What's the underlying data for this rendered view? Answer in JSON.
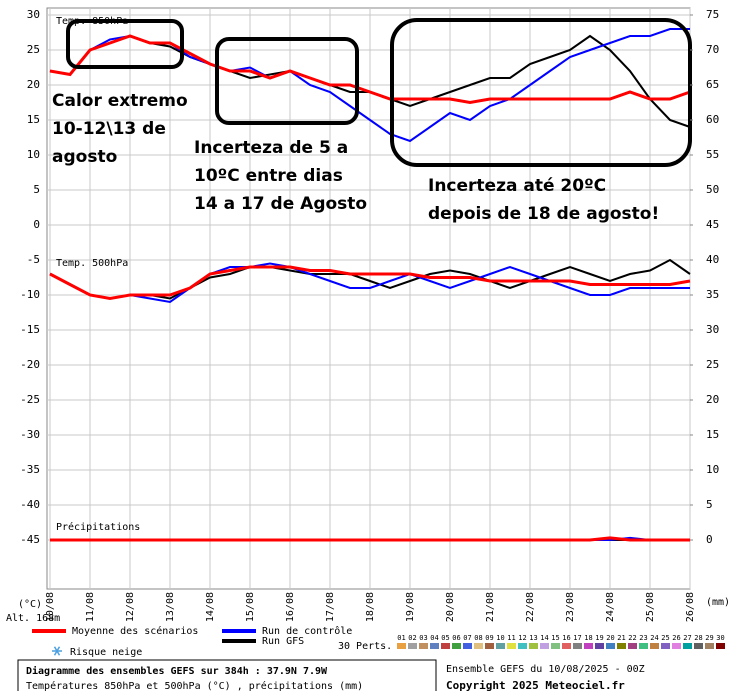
{
  "chart_data": {
    "type": "line",
    "panel_labels": [
      "Temp. 850hPa",
      "Temp. 500hPa",
      "Précipitations"
    ],
    "annotations": [
      "Calor extremo",
      "10-12\\13 de",
      "agosto",
      "Incerteza de 5 a",
      "10ºC entre dias",
      "14 a 17 de Agosto",
      "Incerteza até 20ºC",
      "depois de 18 de agosto!"
    ],
    "ylabel": "(°C)",
    "y2label": "(mm)",
    "altitude": "Alt. 168m",
    "categories": [
      "10/08",
      null,
      "11/08",
      null,
      "12/08",
      null,
      "13/08",
      null,
      "14/08",
      null,
      "15/08",
      null,
      "16/08",
      null,
      "17/08",
      null,
      "18/08",
      null,
      "19/08",
      null,
      "20/08",
      null,
      "21/08",
      null,
      "22/08",
      null,
      "23/08",
      null,
      "24/08",
      null,
      "25/08",
      null,
      "26/08"
    ],
    "ylim": [
      -52,
      31
    ],
    "yticks": [
      -45,
      -40,
      -35,
      -30,
      -25,
      -20,
      -15,
      -10,
      -5,
      0,
      5,
      10,
      15,
      20,
      25,
      30
    ],
    "y2lim": [
      -7,
      76
    ],
    "y2ticks": [
      0,
      5,
      10,
      15,
      20,
      25,
      30,
      35,
      40,
      45,
      50,
      55,
      60,
      65,
      70,
      75
    ],
    "grid": true,
    "series": [
      {
        "name": "Moyenne des scénarios",
        "color": "#ff0000",
        "t850": [
          22,
          21.5,
          25,
          26,
          27,
          26,
          26,
          24.5,
          23,
          22,
          22,
          21,
          22,
          21,
          20,
          20,
          19,
          18,
          18,
          18,
          18,
          17.5,
          18,
          18,
          18,
          18,
          18,
          18,
          18,
          19,
          18,
          18,
          19
        ],
        "t500": [
          -7,
          -8.5,
          -10,
          -10.5,
          -10,
          -10,
          -10,
          -9,
          -7,
          -6.5,
          -6,
          -6,
          -6,
          -6.5,
          -6.5,
          -7,
          -7,
          -7,
          -7,
          -7.5,
          -7.5,
          -7.5,
          -8,
          -8,
          -8,
          -8,
          -8,
          -8.5,
          -8.5,
          -8.5,
          -8.5,
          -8.5,
          -8
        ],
        "precip": [
          0,
          0,
          0,
          0,
          0,
          0,
          0,
          0,
          0,
          0,
          0,
          0,
          0,
          0,
          0,
          0,
          0,
          0,
          0,
          0,
          0,
          0,
          0,
          0,
          0,
          0,
          0,
          0,
          0.3,
          0,
          0,
          0,
          0
        ]
      },
      {
        "name": "Run de contrôle",
        "color": "#0000ff",
        "t850": [
          22,
          21.5,
          25,
          26.5,
          27,
          26,
          26,
          24,
          23,
          22,
          22.5,
          21,
          22,
          20,
          19,
          17,
          15,
          13,
          12,
          14,
          16,
          15,
          17,
          18,
          20,
          22,
          24,
          25,
          26,
          27,
          27,
          28,
          28
        ],
        "t500": [
          -7,
          -8.5,
          -10,
          -10.5,
          -10,
          -10.5,
          -11,
          -9,
          -7,
          -6,
          -6,
          -5.5,
          -6,
          -7,
          -8,
          -9,
          -9,
          -8,
          -7,
          -8,
          -9,
          -8,
          -7,
          -6,
          -7,
          -8,
          -9,
          -10,
          -10,
          -9,
          -9,
          -9,
          -9
        ],
        "precip": [
          0,
          0,
          0,
          0,
          0,
          0,
          0,
          0,
          0,
          0,
          0,
          0,
          0,
          0,
          0,
          0,
          0,
          0,
          0,
          0,
          0,
          0,
          0,
          0,
          0,
          0,
          0,
          0,
          0,
          0.3,
          0,
          0,
          0
        ]
      },
      {
        "name": "Run GFS",
        "color": "#000000",
        "t850": [
          22,
          21.5,
          25,
          26,
          27,
          26,
          25.5,
          24,
          23,
          22,
          21,
          21.5,
          22,
          21,
          20,
          19,
          19,
          18,
          17,
          18,
          19,
          20,
          21,
          21,
          23,
          24,
          25,
          27,
          25,
          22,
          18,
          15,
          14
        ],
        "t500": [
          -7,
          -8.5,
          -10,
          -10.5,
          -10,
          -10,
          -10.5,
          -9,
          -7.5,
          -7,
          -6,
          -6,
          -6.5,
          -7,
          -7,
          -7,
          -8,
          -9,
          -8,
          -7,
          -6.5,
          -7,
          -8,
          -9,
          -8,
          -7,
          -6,
          -7,
          -8,
          -7,
          -6.5,
          -5,
          -7
        ],
        "precip": [
          0,
          0,
          0,
          0,
          0,
          0,
          0,
          0,
          0,
          0,
          0,
          0,
          0,
          0,
          0,
          0,
          0,
          0,
          0,
          0,
          0,
          0,
          0,
          0,
          0,
          0,
          0,
          0,
          0,
          0,
          0,
          0,
          0
        ]
      }
    ],
    "snow_label": "Risque neige",
    "perturbations": {
      "label": "30 Perts.",
      "members": [
        {
          "name": "01",
          "color": "#e8a040"
        },
        {
          "name": "02",
          "color": "#a0a0a0"
        },
        {
          "name": "03",
          "color": "#c09060"
        },
        {
          "name": "04",
          "color": "#6080c0"
        },
        {
          "name": "05",
          "color": "#c04040"
        },
        {
          "name": "06",
          "color": "#40a040"
        },
        {
          "name": "07",
          "color": "#4060e0"
        },
        {
          "name": "08",
          "color": "#e0c080"
        },
        {
          "name": "09",
          "color": "#a06040"
        },
        {
          "name": "10",
          "color": "#60a0a0"
        },
        {
          "name": "11",
          "color": "#e0e040"
        },
        {
          "name": "12",
          "color": "#40c0c0"
        },
        {
          "name": "13",
          "color": "#a0c040"
        },
        {
          "name": "14",
          "color": "#c0a0e0"
        },
        {
          "name": "15",
          "color": "#80c080"
        },
        {
          "name": "16",
          "color": "#e06060"
        },
        {
          "name": "17",
          "color": "#808080"
        },
        {
          "name": "18",
          "color": "#c040c0"
        },
        {
          "name": "19",
          "color": "#6040a0"
        },
        {
          "name": "20",
          "color": "#4080c0"
        },
        {
          "name": "21",
          "color": "#808000"
        },
        {
          "name": "22",
          "color": "#a04080"
        },
        {
          "name": "23",
          "color": "#40c080"
        },
        {
          "name": "24",
          "color": "#c08040"
        },
        {
          "name": "25",
          "color": "#8060c0"
        },
        {
          "name": "26",
          "color": "#e080e0"
        },
        {
          "name": "27",
          "color": "#00a0a0"
        },
        {
          "name": "28",
          "color": "#606060"
        },
        {
          "name": "29",
          "color": "#a08060"
        },
        {
          "name": "30",
          "color": "#800000"
        }
      ]
    },
    "footer": {
      "title": "Diagramme des ensembles GEFS sur 384h : 37.9N 7.9W",
      "subtitle": "Températures 850hPa et 500hPa (°C) , précipitations (mm)",
      "run": "Ensemble GEFS du 10/08/2025 - 00Z",
      "copyright": "Copyright 2025 Meteociel.fr"
    }
  }
}
